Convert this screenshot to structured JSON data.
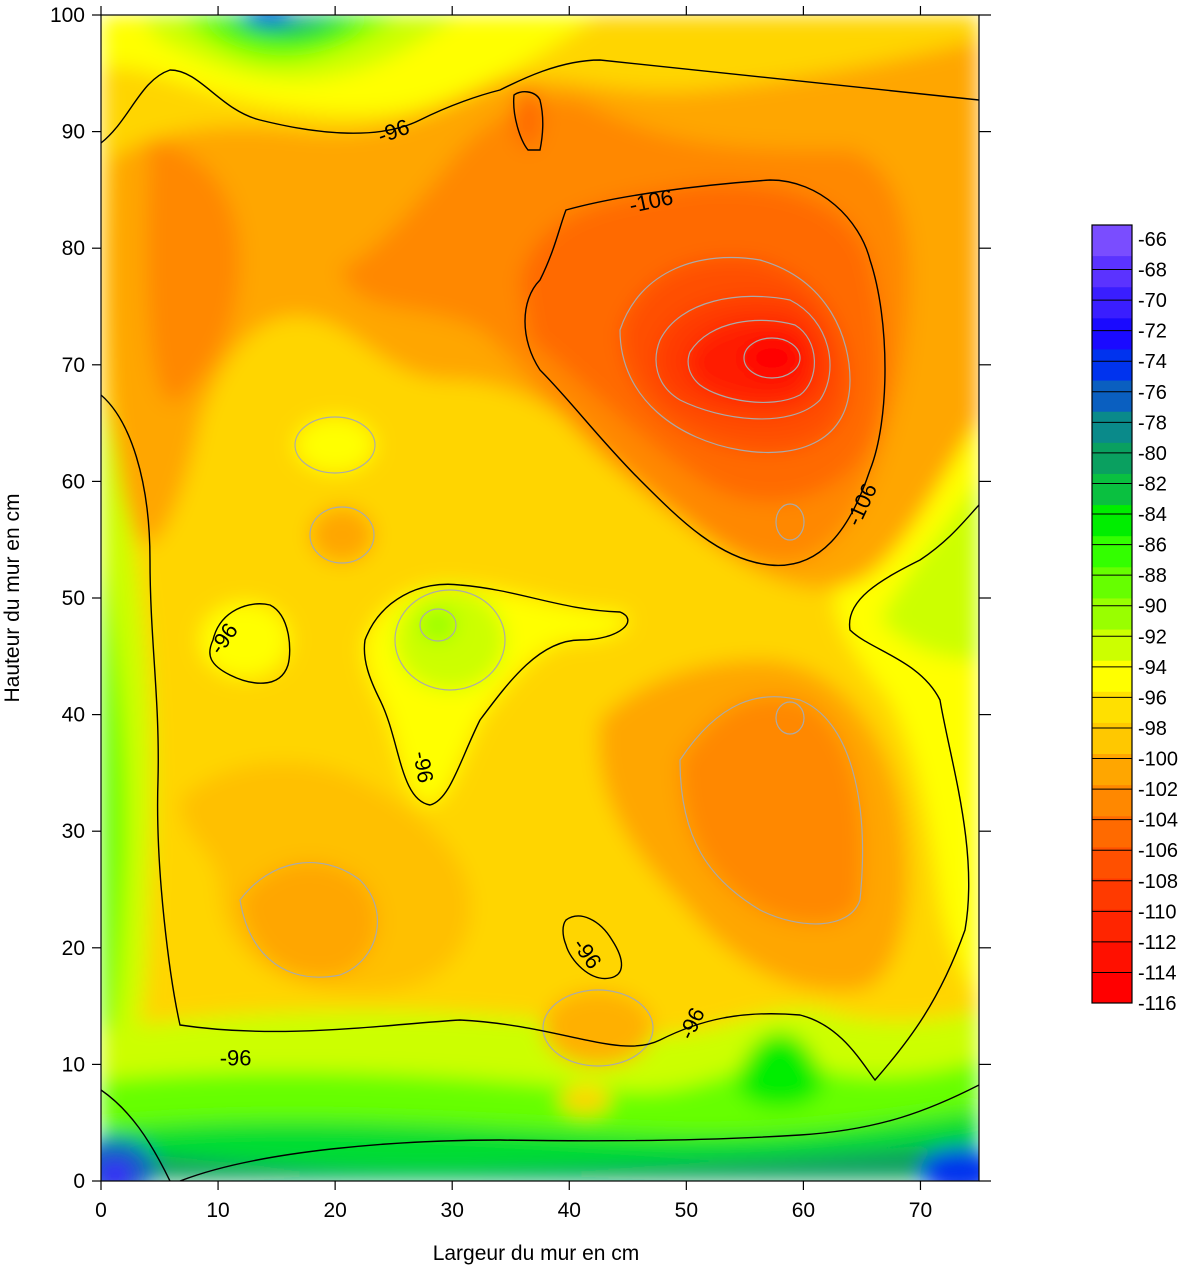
{
  "chart_data": {
    "type": "heatmap",
    "subtype": "filled-contour",
    "title": "",
    "xlabel": "Largeur du mur en cm",
    "ylabel": "Hauteur du mur en cm",
    "xlim": [
      0,
      75
    ],
    "ylim": [
      0,
      100
    ],
    "x_ticks": [
      0,
      10,
      20,
      30,
      40,
      50,
      60,
      70
    ],
    "y_ticks": [
      0,
      10,
      20,
      30,
      40,
      50,
      60,
      70,
      80,
      90,
      100
    ],
    "colorbar": {
      "levels": [
        -66,
        -68,
        -70,
        -72,
        -74,
        -76,
        -78,
        -80,
        -82,
        -84,
        -86,
        -88,
        -90,
        -92,
        -94,
        -96,
        -98,
        -100,
        -102,
        -104,
        -106,
        -108,
        -110,
        -112,
        -114,
        -116
      ],
      "colors": [
        "#9b6bff",
        "#7a4dff",
        "#5b33ff",
        "#3a1eff",
        "#1a0aff",
        "#0033ee",
        "#0a5fc0",
        "#0a8a8a",
        "#0aa060",
        "#0ac040",
        "#00ee00",
        "#33ff00",
        "#66ff00",
        "#99ff00",
        "#ccff00",
        "#ffff00",
        "#ffe000",
        "#ffc800",
        "#ffa600",
        "#ff8800",
        "#ff6a00",
        "#ff5000",
        "#ff3a00",
        "#ff2500",
        "#ff1000",
        "#ff0000"
      ]
    },
    "contour_labels": [
      {
        "text": "-96",
        "x": 25,
        "y": 90
      },
      {
        "text": "-106",
        "x": 47,
        "y": 84
      },
      {
        "text": "-106",
        "x": 65,
        "y": 58
      },
      {
        "text": "-96",
        "x": 10.5,
        "y": 46.5
      },
      {
        "text": "-96",
        "x": 27.5,
        "y": 35.5
      },
      {
        "text": "-96",
        "x": 41.5,
        "y": 19.5
      },
      {
        "text": "-96",
        "x": 50.5,
        "y": 13.5
      },
      {
        "text": "-96",
        "x": 11.5,
        "y": 10.5
      }
    ],
    "minima": [
      {
        "x": 57,
        "y": 71,
        "value": -116
      },
      {
        "x": 59,
        "y": 40,
        "value": -106
      },
      {
        "x": 36,
        "y": 91,
        "value": -104
      }
    ],
    "maxima": [
      {
        "x": 1,
        "y": 2,
        "value": -76
      },
      {
        "x": 74,
        "y": 1,
        "value": -78
      },
      {
        "x": 14,
        "y": 100,
        "value": -80
      }
    ]
  }
}
